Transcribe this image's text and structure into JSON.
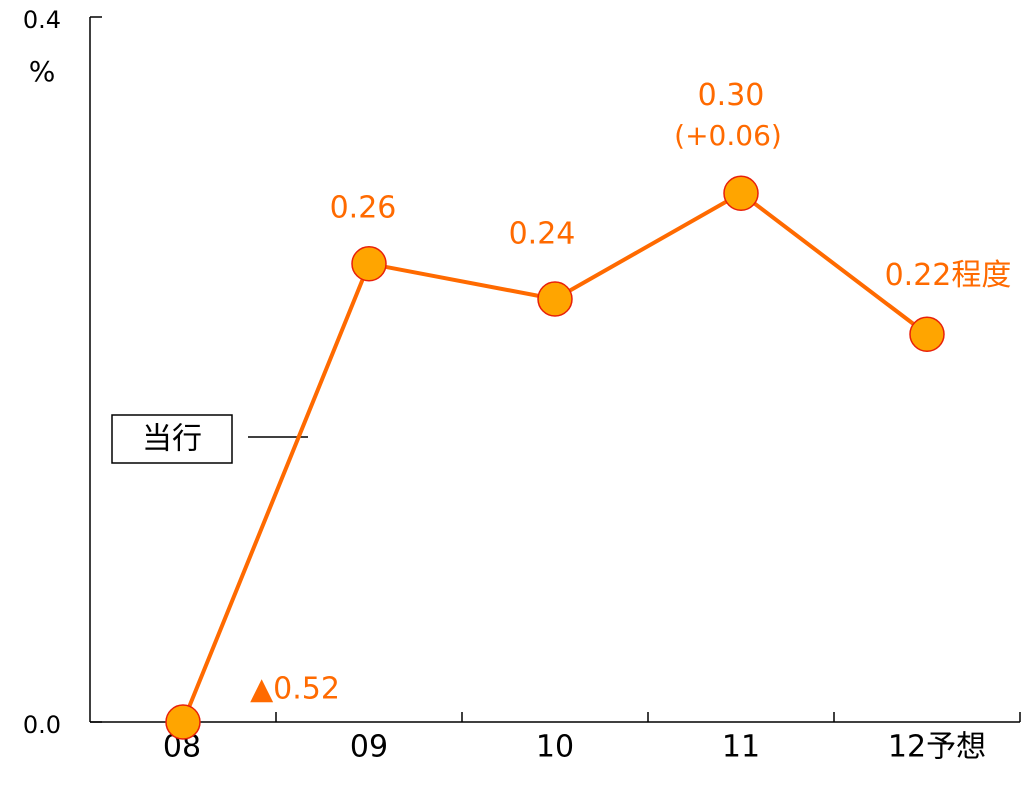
{
  "chart_data": {
    "type": "line",
    "y_label": "%",
    "categories": [
      "08",
      "09",
      "10",
      "11",
      "12予想"
    ],
    "series": [
      {
        "name": "当行",
        "color": "#ff6a00",
        "marker_fill": "#ffa500",
        "marker_edge": "#e8200a",
        "values": [
          0,
          0.26,
          0.24,
          0.3,
          0.22
        ],
        "value_labels": [
          null,
          "0.26",
          "0.24",
          "0.30",
          "0.22程度"
        ]
      }
    ],
    "annotations": [
      "▲0.52",
      "(+0.06)"
    ],
    "ylim": [
      0,
      0.4
    ],
    "yticks": [
      {
        "value": 0,
        "label": "0.0"
      },
      {
        "value": 0.4,
        "label": "0.4"
      }
    ],
    "grid": false
  }
}
